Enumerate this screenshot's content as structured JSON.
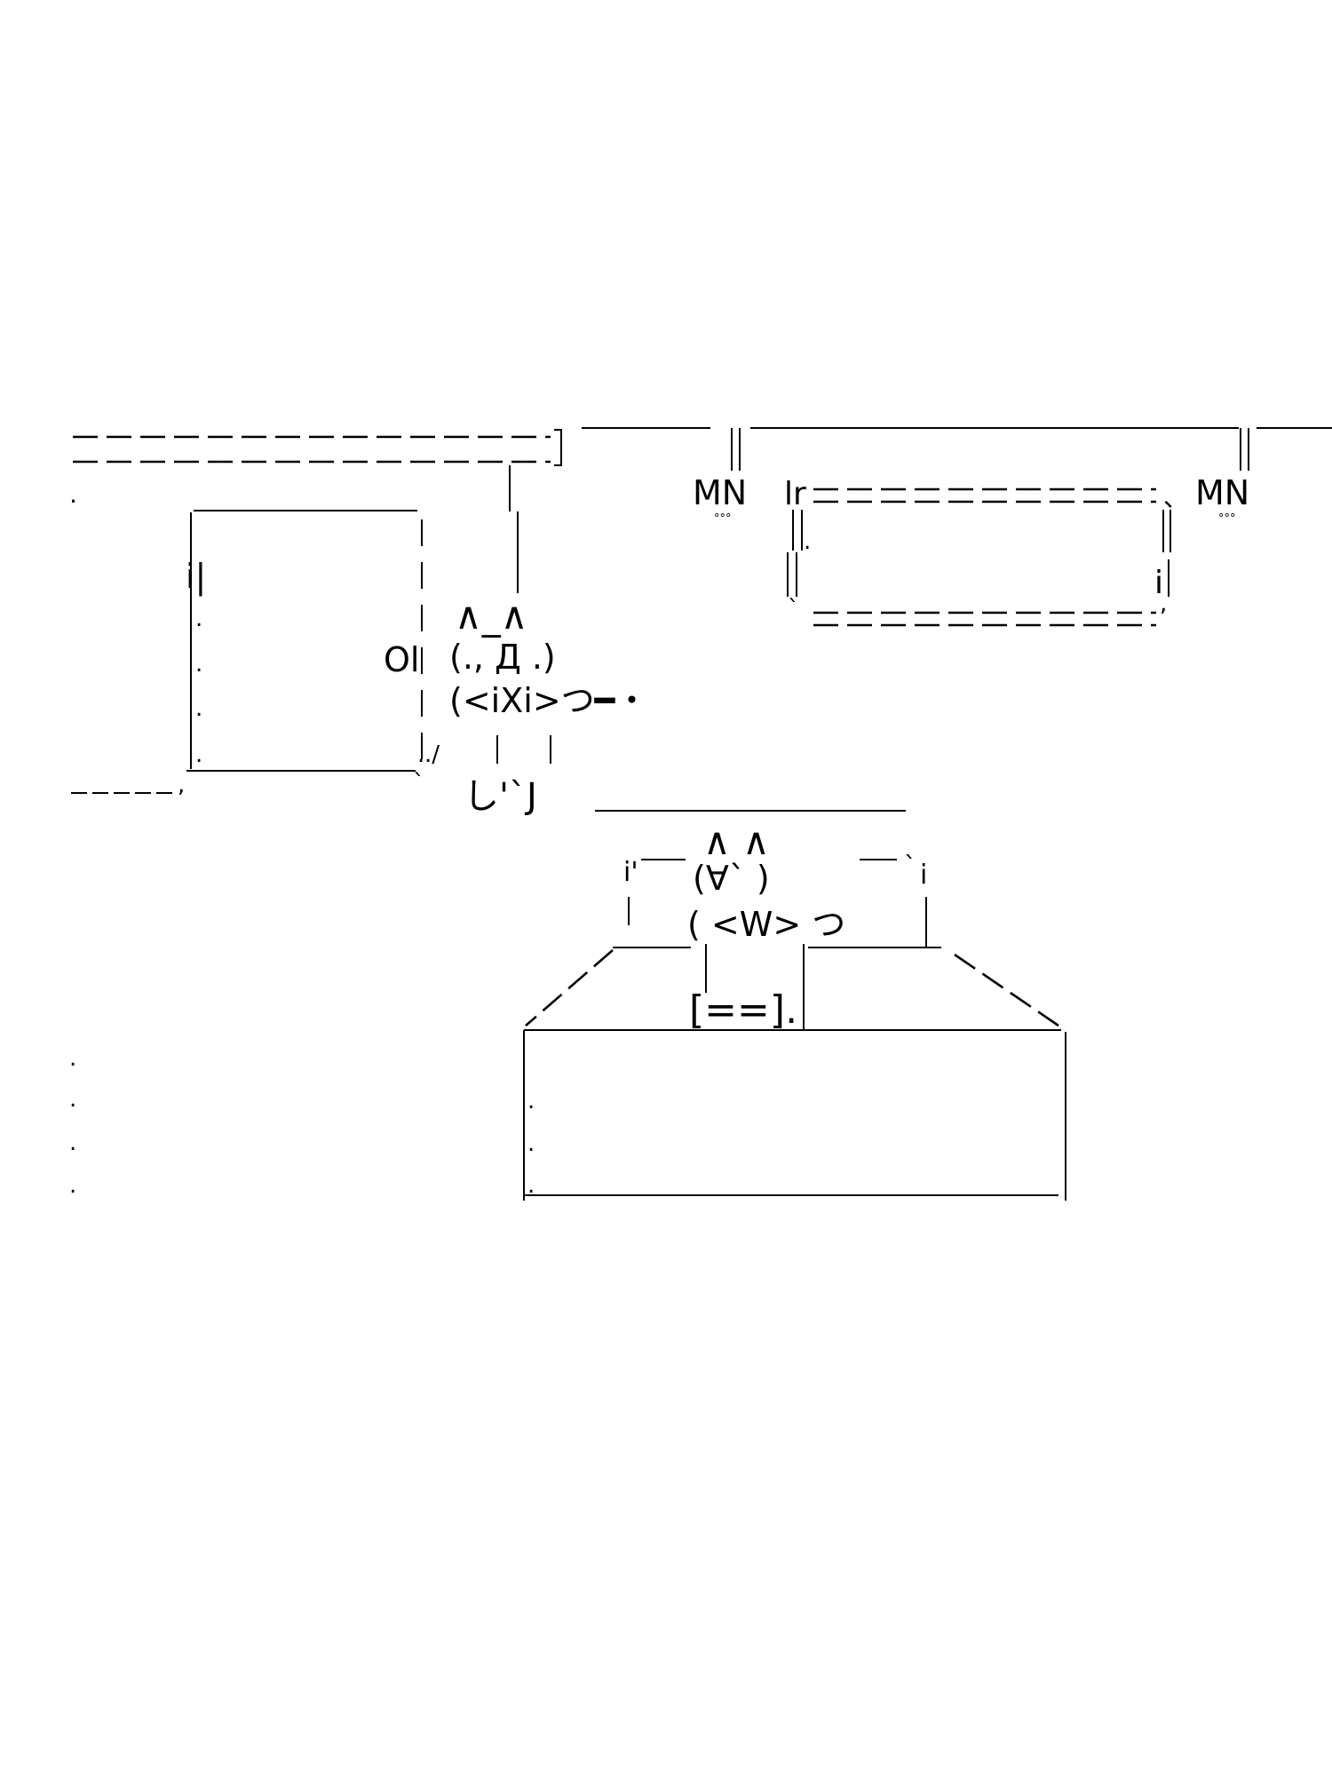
{
  "art": {
    "title": "",
    "mn_left": "MN",
    "mn_right": "MN",
    "ring_marks_left": "°°°",
    "ring_marks_right": "°°°",
    "cat_standing": {
      "ears": "∧_∧",
      "face": "(., Д .)",
      "body": "(<iXi>つ━・",
      "feet": "し'`J",
      "side_mark": "Ol"
    },
    "cat_sitting": {
      "ears": "∧  ∧",
      "face": "(∀` )",
      "body": "( <W> つ"
    },
    "plaque_mark": "[==].",
    "shelf_left_mark": "i|",
    "sign_corner": "lr",
    "sign_corner_right": "i"
  },
  "colors": {
    "ink": "#000000",
    "paper": "#ffffff"
  }
}
